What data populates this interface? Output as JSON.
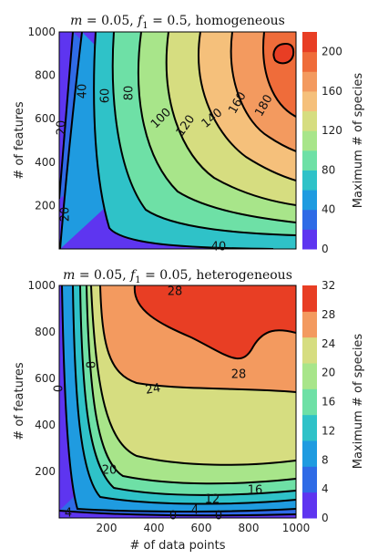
{
  "chart_data": [
    {
      "type": "contour",
      "title": "m = 0.05, f1 = 0.5, homogeneous",
      "xlabel": "",
      "ylabel": "# of features",
      "xlim": [
        0,
        1000
      ],
      "ylim": [
        0,
        1000
      ],
      "xticks": [
        200,
        400,
        600,
        800,
        1000
      ],
      "xtick_labels": [],
      "yticks": [
        200,
        400,
        600,
        800,
        1000
      ],
      "ytick_labels": [
        "200",
        "400",
        "600",
        "800",
        "1000"
      ],
      "colorbar": {
        "label": "Maximum # of species",
        "range": [
          0,
          220
        ],
        "ticks": [
          0,
          40,
          80,
          120,
          160,
          200
        ],
        "tick_labels": [
          "0",
          "40",
          "80",
          "120",
          "160",
          "200"
        ],
        "colors": [
          "#5e35f0",
          "#2f6be6",
          "#1f9be0",
          "#2fc2c8",
          "#6ee0a6",
          "#a8e58a",
          "#d6dd80",
          "#f5c07b",
          "#f39a5f",
          "#ef6c3a",
          "#e83e24"
        ]
      },
      "contours": [
        {
          "level": 20,
          "labels": [
            "20",
            "20"
          ]
        },
        {
          "level": 40,
          "labels": [
            "40",
            "40"
          ]
        },
        {
          "level": 60,
          "labels": [
            "60"
          ]
        },
        {
          "level": 80,
          "labels": [
            "80"
          ]
        },
        {
          "level": 100,
          "labels": [
            "100"
          ]
        },
        {
          "level": 120,
          "labels": [
            "120"
          ]
        },
        {
          "level": 140,
          "labels": [
            "140"
          ]
        },
        {
          "level": 160,
          "labels": [
            "160"
          ]
        },
        {
          "level": 180,
          "labels": [
            "180"
          ]
        },
        {
          "level": 200,
          "labels": []
        }
      ]
    },
    {
      "type": "contour",
      "title": "m = 0.05, f1 = 0.05, heterogeneous",
      "xlabel": "# of data points",
      "ylabel": "# of features",
      "xlim": [
        0,
        1000
      ],
      "ylim": [
        0,
        1000
      ],
      "xticks": [
        200,
        400,
        600,
        800,
        1000
      ],
      "xtick_labels": [
        "200",
        "400",
        "600",
        "800",
        "1000"
      ],
      "yticks": [
        200,
        400,
        600,
        800,
        1000
      ],
      "ytick_labels": [
        "200",
        "400",
        "600",
        "800",
        "1000"
      ],
      "colorbar": {
        "label": "Maximum # of species",
        "range": [
          0,
          32
        ],
        "ticks": [
          0,
          4,
          8,
          12,
          16,
          20,
          24,
          28,
          32
        ],
        "tick_labels": [
          "0",
          "4",
          "8",
          "12",
          "16",
          "20",
          "24",
          "28",
          "32"
        ],
        "colors": [
          "#5e35f0",
          "#2f6be6",
          "#1f9be0",
          "#2fc2c8",
          "#6ee0a6",
          "#a8e58a",
          "#d6dd80",
          "#f39a5f",
          "#e83e24"
        ]
      },
      "contours": [
        {
          "level": 0,
          "labels": [
            "0",
            "0",
            "0"
          ]
        },
        {
          "level": 4,
          "labels": [
            "4",
            "4"
          ]
        },
        {
          "level": 8,
          "labels": [
            "8"
          ]
        },
        {
          "level": 12,
          "labels": [
            "12"
          ]
        },
        {
          "level": 16,
          "labels": [
            "16"
          ]
        },
        {
          "level": 20,
          "labels": [
            "20"
          ]
        },
        {
          "level": 24,
          "labels": [
            "24"
          ]
        },
        {
          "level": 28,
          "labels": [
            "28",
            "28"
          ]
        }
      ]
    }
  ]
}
